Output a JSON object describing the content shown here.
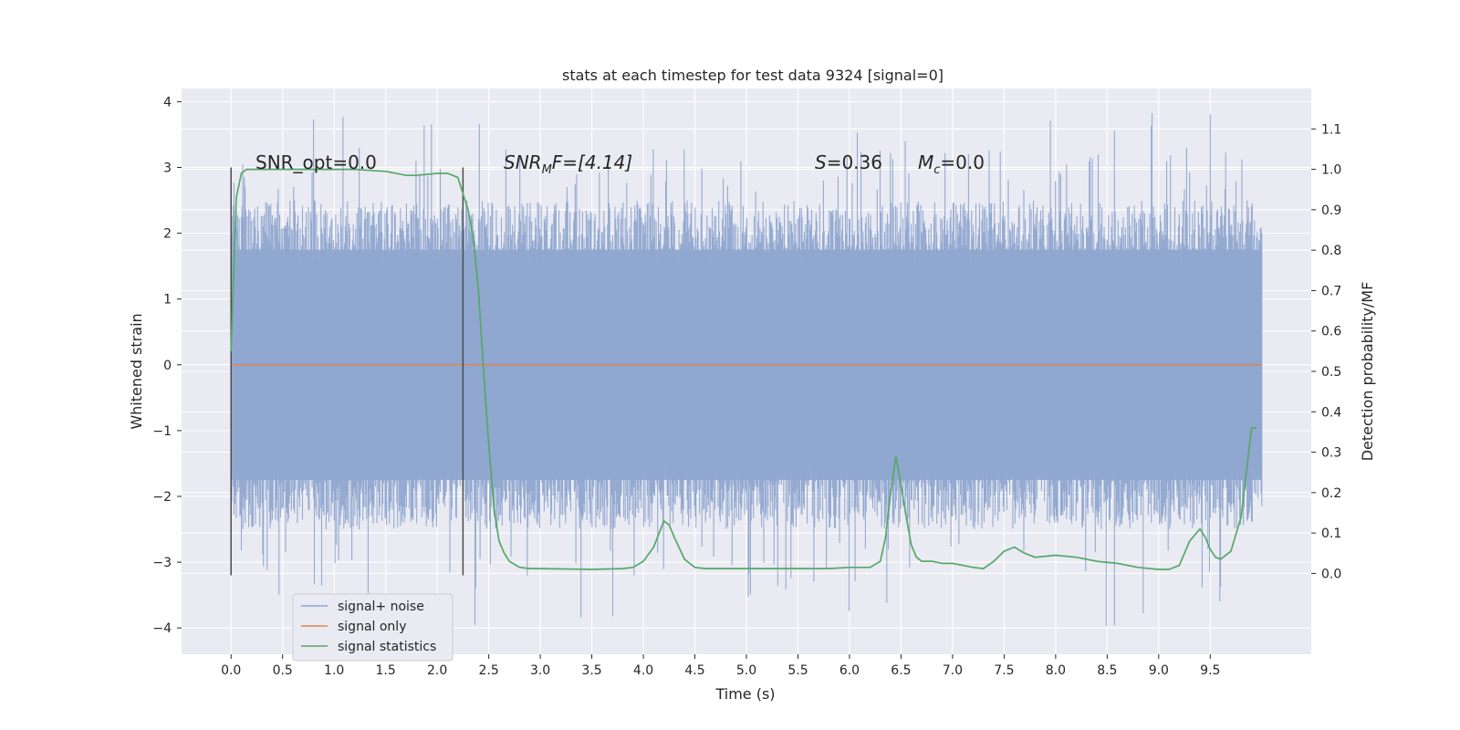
{
  "chart_data": {
    "type": "line",
    "title": "stats at each timestep for test data 9324 [signal=0]",
    "xlabel": "Time (s)",
    "ylabel_left": "Whitened strain",
    "ylabel_right": "Detection probability/MF",
    "xlim": [
      -0.48,
      10.48
    ],
    "ylim_left": [
      -4.4,
      4.2
    ],
    "ylim_right": [
      -0.2,
      1.2
    ],
    "x_ticks": [
      "0.0",
      "0.5",
      "1.0",
      "1.5",
      "2.0",
      "2.5",
      "3.0",
      "3.5",
      "4.0",
      "4.5",
      "5.0",
      "5.5",
      "6.0",
      "6.5",
      "7.0",
      "7.5",
      "8.0",
      "8.5",
      "9.0",
      "9.5"
    ],
    "y_left_ticks": [
      "4",
      "3",
      "2",
      "1",
      "0",
      "−1",
      "−2",
      "−3",
      "−4"
    ],
    "y_right_ticks": [
      "1.1",
      "1.0",
      "0.9",
      "0.8",
      "0.7",
      "0.6",
      "0.5",
      "0.4",
      "0.3",
      "0.2",
      "0.1",
      "0.0"
    ],
    "grid": true,
    "legend_position": "lower-left",
    "colors": {
      "background": "#eaeaf2",
      "grid": "#ffffff",
      "signal_noise": "#8fa6cf",
      "signal_only": "#dd8452",
      "statistics": "#55a868",
      "vlines": "#4d4d4d"
    },
    "series": [
      {
        "name": "signal+ noise",
        "description_kind": "noise band",
        "x_range": [
          0.0,
          10.0
        ],
        "envelope_low": -2.5,
        "envelope_high": 2.5,
        "peak_min": -4.0,
        "peak_max": 3.85
      },
      {
        "name": "signal only",
        "x": [
          0.0,
          10.0
        ],
        "values": [
          0.0,
          0.0
        ]
      },
      {
        "name": "signal statistics",
        "axis": "right",
        "x": [
          0.0,
          0.05,
          0.1,
          0.15,
          0.2,
          0.3,
          0.5,
          0.8,
          1.0,
          1.2,
          1.5,
          1.7,
          1.8,
          2.0,
          2.1,
          2.2,
          2.3,
          2.35,
          2.4,
          2.45,
          2.5,
          2.55,
          2.6,
          2.65,
          2.7,
          2.8,
          2.9,
          3.0,
          3.5,
          3.8,
          3.9,
          4.0,
          4.1,
          4.2,
          4.25,
          4.3,
          4.4,
          4.5,
          4.6,
          4.8,
          5.0,
          5.5,
          5.8,
          6.0,
          6.2,
          6.3,
          6.35,
          6.4,
          6.45,
          6.5,
          6.55,
          6.6,
          6.65,
          6.7,
          6.8,
          6.9,
          7.0,
          7.2,
          7.3,
          7.4,
          7.5,
          7.6,
          7.7,
          7.8,
          8.0,
          8.2,
          8.4,
          8.6,
          8.8,
          9.0,
          9.1,
          9.2,
          9.3,
          9.4,
          9.45,
          9.5,
          9.55,
          9.6,
          9.7,
          9.8,
          9.85,
          9.9,
          9.95
        ],
        "values": [
          0.55,
          0.93,
          0.99,
          1.0,
          1.0,
          1.0,
          1.0,
          1.0,
          1.0,
          1.0,
          0.995,
          0.985,
          0.985,
          0.99,
          0.99,
          0.98,
          0.9,
          0.83,
          0.7,
          0.5,
          0.32,
          0.16,
          0.08,
          0.05,
          0.03,
          0.015,
          0.012,
          0.012,
          0.01,
          0.012,
          0.015,
          0.03,
          0.065,
          0.13,
          0.12,
          0.09,
          0.035,
          0.015,
          0.012,
          0.012,
          0.012,
          0.012,
          0.012,
          0.015,
          0.015,
          0.03,
          0.09,
          0.2,
          0.29,
          0.22,
          0.14,
          0.07,
          0.04,
          0.03,
          0.03,
          0.025,
          0.025,
          0.015,
          0.012,
          0.03,
          0.055,
          0.065,
          0.05,
          0.04,
          0.045,
          0.04,
          0.03,
          0.025,
          0.015,
          0.01,
          0.01,
          0.02,
          0.08,
          0.11,
          0.09,
          0.06,
          0.04,
          0.035,
          0.055,
          0.14,
          0.25,
          0.36,
          0.36
        ]
      }
    ],
    "vlines": [
      0.0,
      2.25
    ],
    "annotations": {
      "snr_opt": "SNR_opt=0.0",
      "snr_mf_main": "SNR",
      "snr_mf_sub": "M",
      "snr_mf_rest": "F=[4.14]",
      "s_main": "S",
      "s_rest": "=0.36",
      "mc_main": "M",
      "mc_sub": "c",
      "mc_rest": "=0.0"
    }
  }
}
